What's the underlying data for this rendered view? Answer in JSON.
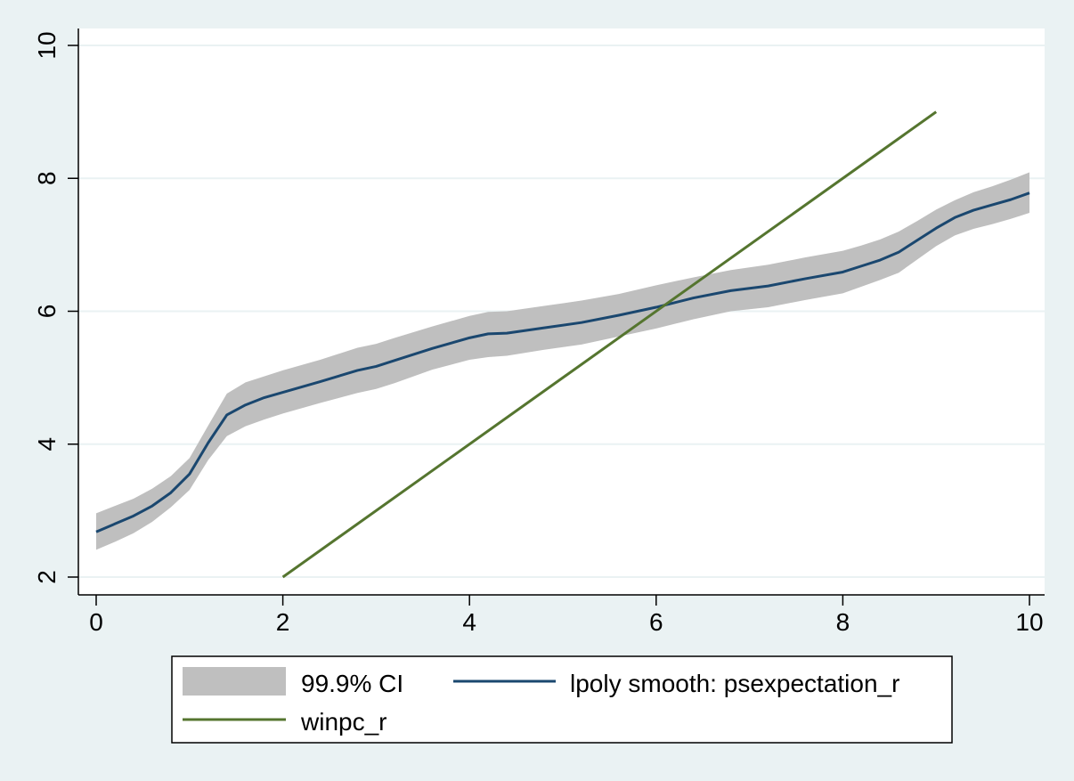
{
  "chart_data": {
    "type": "line",
    "title": "",
    "xlabel": "",
    "ylabel": "",
    "xlim": [
      0,
      10
    ],
    "ylim": [
      2,
      10
    ],
    "x_ticks": [
      "0",
      "2",
      "4",
      "6",
      "8",
      "10"
    ],
    "y_ticks": [
      "2",
      "4",
      "6",
      "8",
      "10"
    ],
    "grid": "horizontal",
    "legend_position": "bottom",
    "series": [
      {
        "name": "99.9% CI",
        "kind": "band",
        "color": "#bfbfbf",
        "x": [
          0,
          0.2,
          0.4,
          0.6,
          0.8,
          1.0,
          1.2,
          1.4,
          1.6,
          1.8,
          2.0,
          2.4,
          2.8,
          3.0,
          3.2,
          3.6,
          4.0,
          4.2,
          4.4,
          4.8,
          5.2,
          5.6,
          6.0,
          6.2,
          6.4,
          6.8,
          7.2,
          7.6,
          8.0,
          8.2,
          8.4,
          8.6,
          8.8,
          9.0,
          9.2,
          9.4,
          9.6,
          9.8,
          10.0
        ],
        "lower": [
          2.41,
          2.53,
          2.66,
          2.83,
          3.05,
          3.31,
          3.76,
          4.12,
          4.27,
          4.37,
          4.46,
          4.62,
          4.77,
          4.83,
          4.92,
          5.12,
          5.27,
          5.31,
          5.33,
          5.42,
          5.5,
          5.62,
          5.74,
          5.81,
          5.88,
          6.0,
          6.06,
          6.17,
          6.27,
          6.37,
          6.47,
          6.58,
          6.78,
          6.98,
          7.14,
          7.24,
          7.31,
          7.39,
          7.48
        ],
        "upper": [
          2.96,
          3.07,
          3.18,
          3.33,
          3.52,
          3.79,
          4.28,
          4.76,
          4.93,
          5.02,
          5.11,
          5.27,
          5.45,
          5.51,
          5.6,
          5.77,
          5.93,
          5.99,
          6.0,
          6.08,
          6.16,
          6.26,
          6.39,
          6.45,
          6.51,
          6.62,
          6.7,
          6.81,
          6.91,
          6.99,
          7.08,
          7.2,
          7.36,
          7.53,
          7.67,
          7.79,
          7.88,
          7.98,
          8.09
        ]
      },
      {
        "name": "lpoly smooth: psexpectation_r",
        "kind": "line",
        "color": "#1a476f",
        "x": [
          0,
          0.2,
          0.4,
          0.6,
          0.8,
          1.0,
          1.2,
          1.4,
          1.6,
          1.8,
          2.0,
          2.4,
          2.8,
          3.0,
          3.2,
          3.6,
          4.0,
          4.2,
          4.4,
          4.8,
          5.2,
          5.6,
          6.0,
          6.2,
          6.4,
          6.8,
          7.2,
          7.6,
          8.0,
          8.2,
          8.4,
          8.6,
          8.8,
          9.0,
          9.2,
          9.4,
          9.6,
          9.8,
          10.0
        ],
        "y": [
          2.68,
          2.8,
          2.92,
          3.07,
          3.27,
          3.55,
          4.02,
          4.44,
          4.59,
          4.7,
          4.78,
          4.94,
          5.11,
          5.17,
          5.26,
          5.44,
          5.6,
          5.66,
          5.67,
          5.75,
          5.83,
          5.94,
          6.06,
          6.13,
          6.2,
          6.31,
          6.38,
          6.49,
          6.59,
          6.68,
          6.77,
          6.89,
          7.07,
          7.25,
          7.41,
          7.52,
          7.6,
          7.68,
          7.78
        ]
      },
      {
        "name": "winpc_r",
        "kind": "line",
        "color": "#55752f",
        "x": [
          2,
          9
        ],
        "y": [
          2,
          9
        ]
      }
    ]
  }
}
